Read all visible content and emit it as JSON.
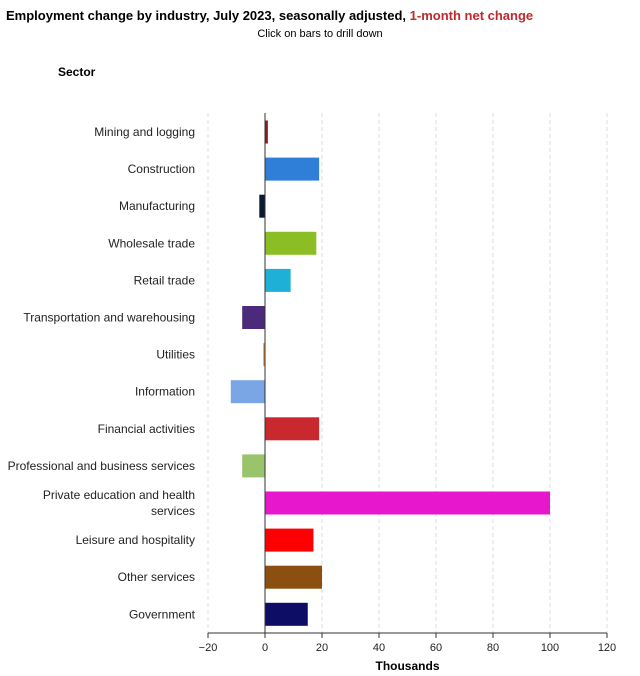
{
  "header": {
    "title_main": "Employment change by industry, July 2023, seasonally adjusted,",
    "title_highlight": "1-month net change",
    "subtitle": "Click on bars to drill down",
    "category_axis_label": "Sector"
  },
  "chart_data": {
    "type": "bar",
    "orientation": "horizontal",
    "xlabel": "Thousands",
    "ylabel": "Sector",
    "xlim": [
      -20,
      120
    ],
    "xticks": [
      -20,
      0,
      20,
      40,
      60,
      80,
      100,
      120
    ],
    "xtick_labels": [
      "−20",
      "0",
      "20",
      "40",
      "60",
      "80",
      "100",
      "120"
    ],
    "grid": true,
    "categories": [
      "Mining and logging",
      "Construction",
      "Manufacturing",
      "Wholesale trade",
      "Retail trade",
      "Transportation and warehousing",
      "Utilities",
      "Information",
      "Financial activities",
      "Professional and business services",
      "Private education and health services",
      "Leisure and hospitality",
      "Other services",
      "Government"
    ],
    "values": [
      1,
      19,
      -2,
      18,
      9,
      -8,
      -0.6,
      -12,
      19,
      -8,
      100,
      17,
      20,
      15
    ],
    "colors": [
      "#8b1a1a",
      "#2f7fd8",
      "#0b1a33",
      "#8bbd24",
      "#1fb0d8",
      "#4b2a7b",
      "#e88a33",
      "#7ba6e6",
      "#c8282e",
      "#9ac46a",
      "#e617cc",
      "#ff0000",
      "#8b4f0f",
      "#0d0d66"
    ]
  }
}
